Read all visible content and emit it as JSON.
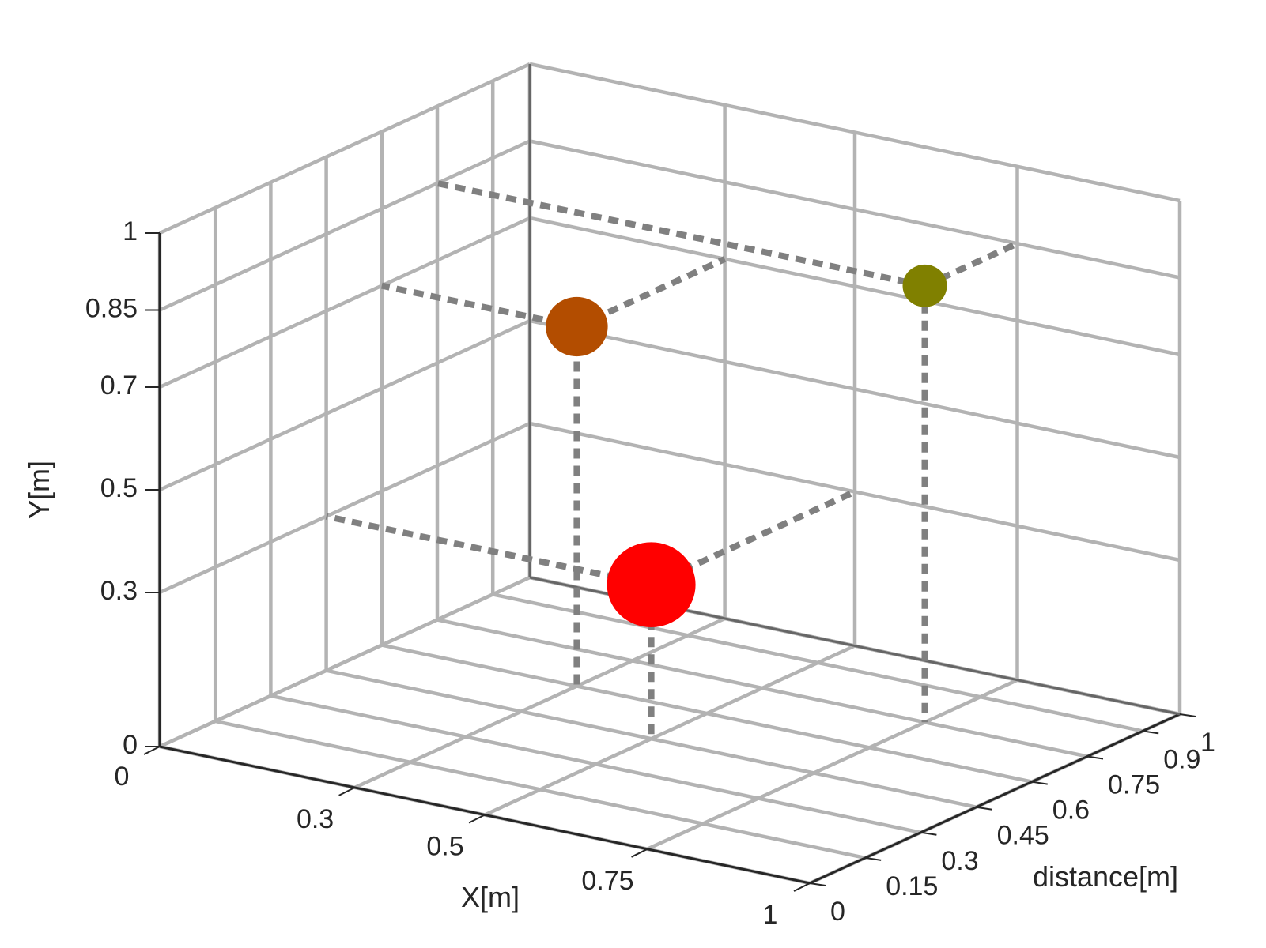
{
  "chart_data": {
    "type": "scatter3d",
    "x_label": "X[m]",
    "y_label": "Y[m]",
    "z_label": "distance[m]",
    "x_ticks": [
      "0",
      "0.3",
      "0.5",
      "0.75",
      "1"
    ],
    "x_tick_values": [
      0,
      0.3,
      0.5,
      0.75,
      1
    ],
    "y_ticks": [
      "0",
      "0.3",
      "0.5",
      "0.7",
      "0.85",
      "1"
    ],
    "y_tick_values": [
      0,
      0.3,
      0.5,
      0.7,
      0.85,
      1
    ],
    "z_ticks": [
      "0",
      "0.15",
      "0.3",
      "0.45",
      "0.6",
      "0.75",
      "0.9",
      "1"
    ],
    "z_tick_values": [
      0,
      0.15,
      0.3,
      0.45,
      0.6,
      0.75,
      0.9,
      1
    ],
    "xlim": [
      0,
      1
    ],
    "ylim": [
      0,
      1
    ],
    "zlim": [
      0,
      1
    ],
    "grid": true,
    "projection_lines": true,
    "points": [
      {
        "x": 0.5,
        "y": 0.3,
        "distance": 0.45,
        "color": "#ff0000",
        "relative_size": 1.0
      },
      {
        "x": 0.3,
        "y": 0.7,
        "distance": 0.6,
        "color": "#b34d00",
        "relative_size": 0.7
      },
      {
        "x": 0.75,
        "y": 0.85,
        "distance": 0.75,
        "color": "#808000",
        "relative_size": 0.5
      }
    ]
  }
}
